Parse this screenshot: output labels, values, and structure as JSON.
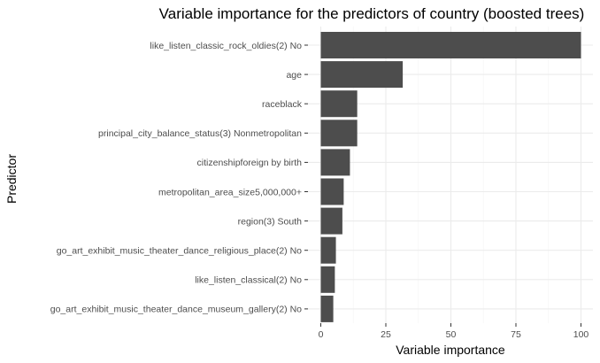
{
  "chart_data": {
    "type": "bar",
    "orientation": "horizontal",
    "title": "Variable importance for the predictors of country (boosted trees)",
    "xlabel": "Variable importance",
    "ylabel": "Predictor",
    "xlim": [
      0,
      100
    ],
    "xticks": [
      0,
      25,
      50,
      75,
      100
    ],
    "grid": true,
    "bar_color": "#4d4d4d",
    "categories": [
      "like_listen_classic_rock_oldies(2) No",
      "age",
      "raceblack",
      "principal_city_balance_status(3) Nonmetropolitan",
      "citizenshipforeign by birth",
      "metropolitan_area_size5,000,000+",
      "region(3) South",
      "go_art_exhibit_music_theater_dance_religious_place(2) No",
      "like_listen_classical(2) No",
      "go_art_exhibit_music_theater_dance_museum_gallery(2) No"
    ],
    "values": [
      100,
      31.5,
      14,
      14,
      11.2,
      8.8,
      8.3,
      5.8,
      5.4,
      4.8
    ]
  }
}
